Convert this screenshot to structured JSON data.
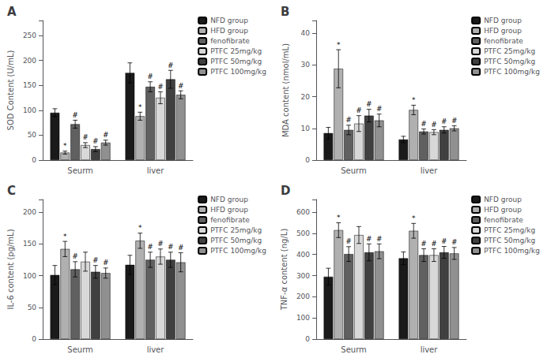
{
  "chart_data": [
    {
      "type": "bar",
      "title": "A",
      "ylabel": "SOD Content (U/mL)",
      "categories": [
        "Seurm",
        "liver"
      ],
      "series": [
        {
          "name": "NFD group",
          "color": "#1a1a1a",
          "values": [
            95,
            175
          ],
          "errors": [
            8,
            20
          ],
          "annotations": [
            null,
            null
          ]
        },
        {
          "name": "HFD group",
          "color": "#b0b0b0",
          "values": [
            15,
            88
          ],
          "errors": [
            3,
            8
          ],
          "annotations": [
            "*",
            "*"
          ]
        },
        {
          "name": "fenofibrate",
          "color": "#606060",
          "values": [
            72,
            147
          ],
          "errors": [
            8,
            10
          ],
          "annotations": [
            "#",
            "#"
          ]
        },
        {
          "name": "PTFC 25mg/kg",
          "color": "#d8d8d8",
          "values": [
            30,
            125
          ],
          "errors": [
            5,
            12
          ],
          "annotations": [
            "#",
            "#"
          ]
        },
        {
          "name": "PTFC 50mg/kg",
          "color": "#404040",
          "values": [
            22,
            162
          ],
          "errors": [
            5,
            18
          ],
          "annotations": [
            "#",
            "#"
          ]
        },
        {
          "name": "PTFC 100mg/kg",
          "color": "#909090",
          "values": [
            35,
            131
          ],
          "errors": [
            5,
            8
          ],
          "annotations": [
            "#",
            "#"
          ]
        }
      ],
      "ylim": [
        0,
        280
      ],
      "yticks": [
        0,
        50,
        100,
        150,
        200,
        250
      ],
      "grid": false,
      "legend": "upper right"
    },
    {
      "type": "bar",
      "title": "B",
      "ylabel": "MDA content (nmol/mL)",
      "categories": [
        "Seurm",
        "liver"
      ],
      "series": [
        {
          "name": "NFD group",
          "color": "#1a1a1a",
          "values": [
            8.5,
            6.5
          ],
          "errors": [
            1.8,
            1.0
          ],
          "annotations": [
            null,
            null
          ]
        },
        {
          "name": "HFD group",
          "color": "#b0b0b0",
          "values": [
            28.8,
            15.8
          ],
          "errors": [
            6.0,
            1.5
          ],
          "annotations": [
            "*",
            "*"
          ]
        },
        {
          "name": "fenofibrate",
          "color": "#606060",
          "values": [
            9.5,
            9.0
          ],
          "errors": [
            1.5,
            0.8
          ],
          "annotations": [
            "#",
            "#"
          ]
        },
        {
          "name": "PTFC 25mg/kg",
          "color": "#d8d8d8",
          "values": [
            11.5,
            8.8
          ],
          "errors": [
            2.5,
            0.8
          ],
          "annotations": [
            "#",
            "#"
          ]
        },
        {
          "name": "PTFC 50mg/kg",
          "color": "#404040",
          "values": [
            14.0,
            9.5
          ],
          "errors": [
            2.0,
            1.0
          ],
          "annotations": [
            "#",
            "#"
          ]
        },
        {
          "name": "PTFC 100mg/kg",
          "color": "#909090",
          "values": [
            12.5,
            10.0
          ],
          "errors": [
            2.0,
            0.8
          ],
          "annotations": [
            "#",
            "#"
          ]
        }
      ],
      "ylim": [
        0,
        44
      ],
      "yticks": [
        0,
        10,
        20,
        30,
        40
      ],
      "grid": false,
      "legend": "upper right"
    },
    {
      "type": "bar",
      "title": "C",
      "ylabel": "IL-6 content (pg/mL)",
      "categories": [
        "Seurm",
        "liver"
      ],
      "series": [
        {
          "name": "NFD group",
          "color": "#1a1a1a",
          "values": [
            101,
            117
          ],
          "errors": [
            15,
            15
          ],
          "annotations": [
            null,
            null
          ]
        },
        {
          "name": "HFD group",
          "color": "#b0b0b0",
          "values": [
            142,
            155
          ],
          "errors": [
            12,
            12
          ],
          "annotations": [
            "*",
            "*"
          ]
        },
        {
          "name": "fenofibrate",
          "color": "#606060",
          "values": [
            110,
            125
          ],
          "errors": [
            12,
            12
          ],
          "annotations": [
            "#",
            "#"
          ]
        },
        {
          "name": "PTFC 25mg/kg",
          "color": "#d8d8d8",
          "values": [
            122,
            130
          ],
          "errors": [
            15,
            12
          ],
          "annotations": [
            null,
            "#"
          ]
        },
        {
          "name": "PTFC 50mg/kg",
          "color": "#404040",
          "values": [
            106,
            125
          ],
          "errors": [
            10,
            12
          ],
          "annotations": [
            "#",
            "#"
          ]
        },
        {
          "name": "PTFC 100mg/kg",
          "color": "#909090",
          "values": [
            104,
            121
          ],
          "errors": [
            8,
            15
          ],
          "annotations": [
            "#",
            "#"
          ]
        }
      ],
      "ylim": [
        0,
        220
      ],
      "yticks": [
        0,
        50,
        100,
        150,
        200
      ],
      "grid": false,
      "legend": "upper right"
    },
    {
      "type": "bar",
      "title": "D",
      "ylabel": "TNF-α content (ng/L)",
      "categories": [
        "Seurm",
        "liver"
      ],
      "series": [
        {
          "name": "NFD group",
          "color": "#1a1a1a",
          "values": [
            295,
            382
          ],
          "errors": [
            40,
            30
          ],
          "annotations": [
            null,
            null
          ]
        },
        {
          "name": "HFD group",
          "color": "#b0b0b0",
          "values": [
            515,
            512
          ],
          "errors": [
            35,
            35
          ],
          "annotations": [
            "*",
            "*"
          ]
        },
        {
          "name": "fenofibrate",
          "color": "#606060",
          "values": [
            402,
            397
          ],
          "errors": [
            35,
            30
          ],
          "annotations": [
            "#",
            "#"
          ]
        },
        {
          "name": "PTFC 25mg/kg",
          "color": "#d8d8d8",
          "values": [
            492,
            397
          ],
          "errors": [
            40,
            30
          ],
          "annotations": [
            null,
            "#"
          ]
        },
        {
          "name": "PTFC 50mg/kg",
          "color": "#404040",
          "values": [
            410,
            410
          ],
          "errors": [
            40,
            28
          ],
          "annotations": [
            "#",
            "#"
          ]
        },
        {
          "name": "PTFC 100mg/kg",
          "color": "#909090",
          "values": [
            415,
            405
          ],
          "errors": [
            35,
            28
          ],
          "annotations": [
            "#",
            "#"
          ]
        }
      ],
      "ylim": [
        0,
        660
      ],
      "yticks": [
        0,
        100,
        200,
        300,
        400,
        500,
        600
      ],
      "grid": false,
      "legend": "upper right"
    }
  ]
}
